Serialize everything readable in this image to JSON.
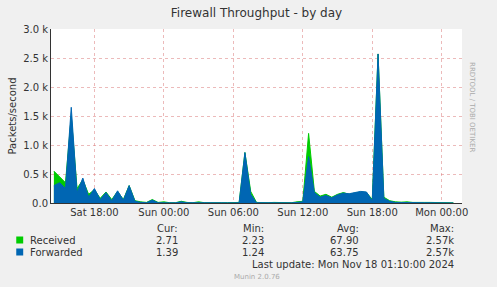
{
  "chart_data": {
    "type": "area",
    "title": "Firewall Throughput - by day",
    "y_label": "Packets/second",
    "side_text": "RRDTOOL / TOBI OETIKER",
    "footer": "Last update: Mon Nov 18 01:10:00 2024",
    "credit": "Munin 2.0.76",
    "grid": true,
    "ylim": [
      0,
      3000
    ],
    "yticks": [
      {
        "value": 0,
        "label": "0.0"
      },
      {
        "value": 500,
        "label": "0.5 k"
      },
      {
        "value": 1000,
        "label": "1.0 k"
      },
      {
        "value": 1500,
        "label": "1.5 k"
      },
      {
        "value": 2000,
        "label": "2.0 k"
      },
      {
        "value": 2500,
        "label": "2.5 k"
      },
      {
        "value": 3000,
        "label": "3.0 k"
      }
    ],
    "categories": [
      null,
      null,
      null,
      null,
      null,
      null,
      null,
      "Sat 18:00",
      null,
      null,
      null,
      null,
      null,
      null,
      null,
      null,
      null,
      null,
      null,
      "Sun 00:00",
      null,
      null,
      null,
      null,
      null,
      null,
      null,
      null,
      null,
      null,
      null,
      "Sun 06:00",
      null,
      null,
      null,
      null,
      null,
      null,
      null,
      null,
      null,
      null,
      null,
      "Sun 12:00",
      null,
      null,
      null,
      null,
      null,
      null,
      null,
      null,
      null,
      null,
      null,
      "Sun 18:00",
      null,
      null,
      null,
      null,
      null,
      null,
      null,
      null,
      null,
      null,
      null,
      "Mon 00:00",
      null,
      null,
      null
    ],
    "stats_columns": [
      "Cur:",
      "Min:",
      "Avg:",
      "Max:"
    ],
    "series": [
      {
        "name": "Received",
        "color": "#00cc00",
        "stats": [
          2.71,
          2.23,
          {
            "value": 67.9,
            "label": "67.90"
          },
          {
            "value": 2570,
            "label": "2.57k"
          }
        ],
        "values": [
          550,
          450,
          350,
          1500,
          250,
          400,
          150,
          230,
          80,
          190,
          60,
          200,
          60,
          300,
          40,
          20,
          10,
          60,
          10,
          20,
          5,
          5,
          30,
          10,
          5,
          20,
          5,
          5,
          10,
          5,
          5,
          5,
          10,
          870,
          200,
          10,
          5,
          5,
          10,
          5,
          10,
          5,
          20,
          30,
          1200,
          200,
          120,
          150,
          100,
          150,
          180,
          150,
          170,
          190,
          180,
          60,
          2570,
          100,
          40,
          20,
          15,
          20,
          10,
          15,
          10,
          10,
          5,
          5,
          2.23,
          2.71,
          null
        ]
      },
      {
        "name": "Forwarded",
        "color": "#0066b3",
        "stats": [
          1.39,
          1.24,
          63.75,
          {
            "value": 2570,
            "label": "2.57k"
          }
        ],
        "values": [
          300,
          350,
          250,
          1650,
          180,
          430,
          100,
          250,
          60,
          180,
          40,
          210,
          50,
          300,
          30,
          10,
          5,
          50,
          5,
          10,
          3,
          3,
          20,
          5,
          3,
          10,
          3,
          3,
          5,
          3,
          3,
          3,
          5,
          870,
          150,
          5,
          3,
          3,
          5,
          3,
          5,
          3,
          10,
          20,
          800,
          180,
          100,
          130,
          90,
          140,
          170,
          160,
          180,
          200,
          190,
          40,
          2570,
          80,
          30,
          10,
          8,
          10,
          5,
          8,
          5,
          5,
          3,
          3,
          1.24,
          1.39,
          null
        ]
      }
    ]
  }
}
